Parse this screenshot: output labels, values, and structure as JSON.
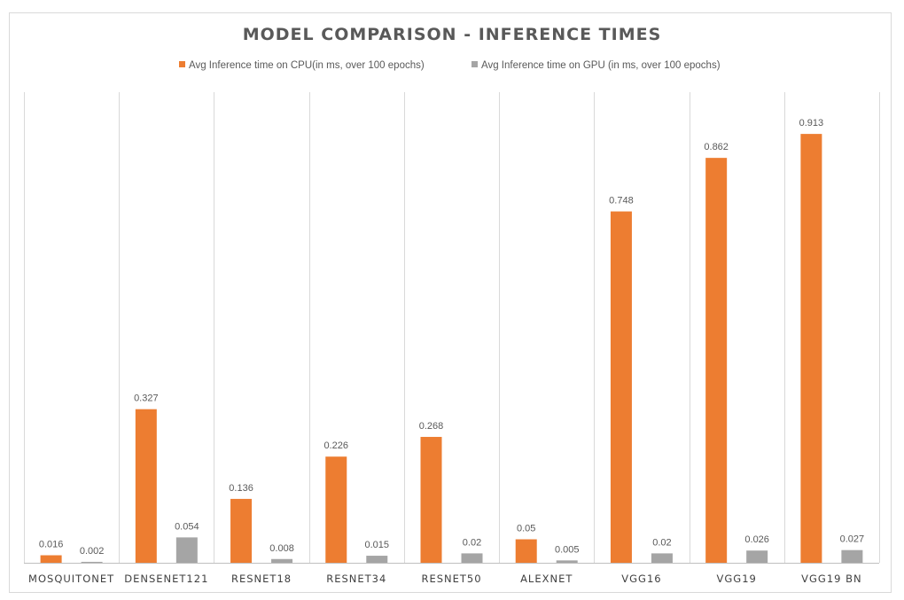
{
  "chart_data": {
    "type": "bar",
    "title": "MODEL COMPARISON - INFERENCE TIMES",
    "categories": [
      "MOSQUITONET",
      "DENSENET121",
      "RESNET18",
      "RESNET34",
      "RESNET50",
      "ALEXNET",
      "VGG16",
      "VGG19",
      "VGG19 BN"
    ],
    "series": [
      {
        "name": "Avg Inference time on CPU(in ms, over 100 epochs)",
        "color": "#ed7d31",
        "values": [
          0.016,
          0.327,
          0.136,
          0.226,
          0.268,
          0.05,
          0.748,
          0.862,
          0.913
        ],
        "labels": [
          "0.016",
          "0.327",
          "0.136",
          "0.226",
          "0.268",
          "0.05",
          "0.748",
          "0.862",
          "0.913"
        ]
      },
      {
        "name": "Avg Inference time on GPU (in ms, over 100 epochs)",
        "color": "#a5a5a5",
        "values": [
          0.002,
          0.054,
          0.008,
          0.015,
          0.02,
          0.005,
          0.02,
          0.026,
          0.027
        ],
        "labels": [
          "0.002",
          "0.054",
          "0.008",
          "0.015",
          "0.02",
          "0.005",
          "0.02",
          "0.026",
          "0.027"
        ]
      }
    ],
    "xlabel": "",
    "ylabel": "",
    "ylim": [
      0,
      1
    ],
    "grid": "vertical category separators",
    "legend": "top"
  }
}
